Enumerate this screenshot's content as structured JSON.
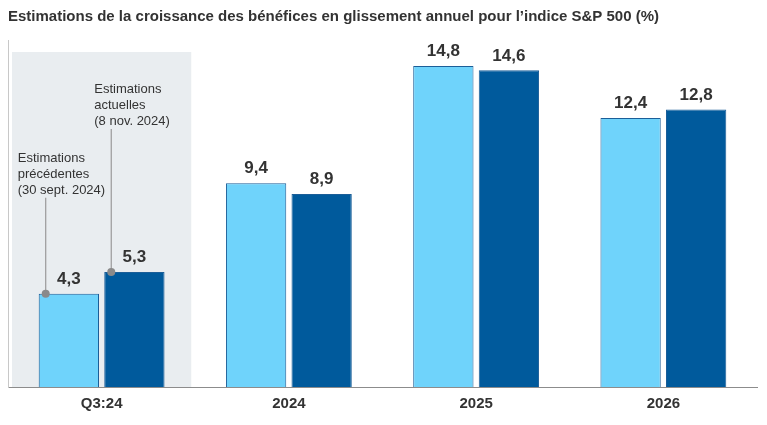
{
  "chart_data": {
    "type": "bar",
    "title": "Estimations de la croissance des bénéfices en glissement annuel pour l’indice S&P 500 (%)",
    "categories": [
      "Q3:24",
      "2024",
      "2025",
      "2026"
    ],
    "series": [
      {
        "name": "Estimations précédentes (30 sept. 2024)",
        "color": "#6fd3fb",
        "values": [
          4.3,
          9.4,
          14.8,
          12.4
        ],
        "value_labels": [
          "4,3",
          "9,4",
          "14,8",
          "12,4"
        ]
      },
      {
        "name": "Estimations actuelles (8 nov. 2024)",
        "color": "#005a9c",
        "values": [
          5.3,
          8.9,
          14.6,
          12.8
        ],
        "value_labels": [
          "5,3",
          "8,9",
          "14,6",
          "12,8"
        ]
      }
    ],
    "ylim": [
      0,
      16
    ],
    "grid": false,
    "data_labels": true,
    "tick_labels": "x"
  }
}
